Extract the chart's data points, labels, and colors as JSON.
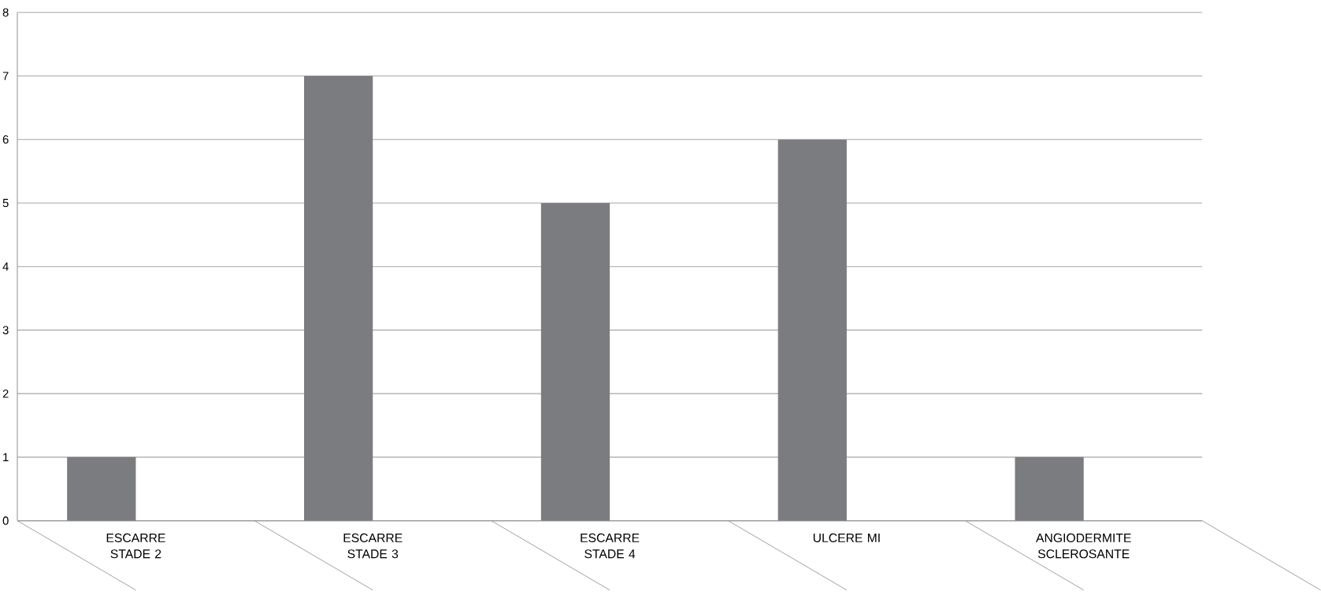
{
  "chart_data": {
    "type": "bar",
    "categories": [
      "ESCARRE STADE 2",
      "ESCARRE STADE 3",
      "ESCARRE STADE 4",
      "ULCERE MI",
      "ANGIODERMITE SCLEROSANTE"
    ],
    "values": [
      1,
      7,
      5,
      6,
      1
    ],
    "color": "#7b7c80",
    "ylim": [
      0,
      8
    ],
    "yticks": [
      0,
      1,
      2,
      3,
      4,
      5,
      6,
      7,
      8
    ],
    "grid": "y"
  }
}
